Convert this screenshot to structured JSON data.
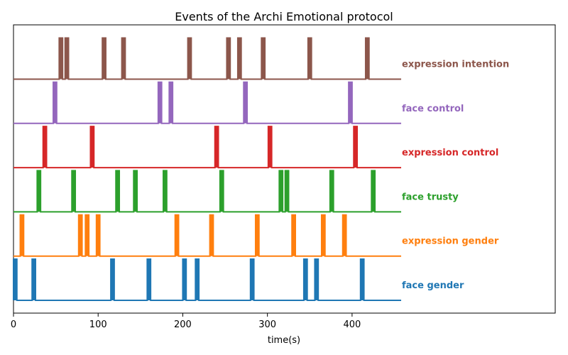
{
  "chart_data": {
    "type": "event_timeline",
    "title": "Events of the Archi Emotional protocol",
    "xlabel": "time(s)",
    "xlim": [
      0,
      640
    ],
    "xticks": [
      0,
      100,
      200,
      300,
      400
    ],
    "event_duration_s": 4,
    "series_end_s": 458,
    "grid": false,
    "series": [
      {
        "name": "face gender",
        "color": "#1f77b4",
        "onsets": [
          0,
          22,
          115,
          158,
          200,
          215,
          280,
          343,
          356,
          410
        ]
      },
      {
        "name": "expression gender",
        "color": "#ff7f0e",
        "onsets": [
          8,
          77,
          85,
          98,
          191,
          232,
          286,
          329,
          364,
          389
        ]
      },
      {
        "name": "face trusty",
        "color": "#2ca02c",
        "onsets": [
          28,
          69,
          121,
          142,
          177,
          244,
          314,
          321,
          374,
          423
        ]
      },
      {
        "name": "expression control",
        "color": "#d62728",
        "onsets": [
          35,
          91,
          238,
          301,
          402
        ]
      },
      {
        "name": "face control",
        "color": "#9467bd",
        "onsets": [
          47,
          171,
          184,
          272,
          396
        ]
      },
      {
        "name": "expression intention",
        "color": "#8c564b",
        "onsets": [
          54,
          61,
          105,
          128,
          206,
          252,
          265,
          293,
          348,
          416
        ]
      }
    ]
  }
}
